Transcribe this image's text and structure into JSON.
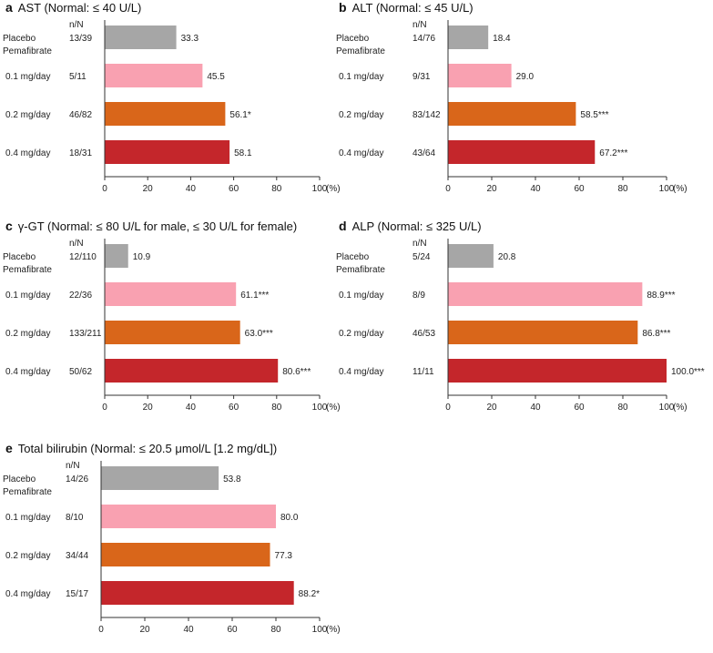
{
  "colors": {
    "placebo": "#a6a6a6",
    "dose_0_1": "#f9a1b1",
    "dose_0_2": "#d9661a",
    "dose_0_4": "#c4262b",
    "axis": "#333333"
  },
  "labels": {
    "nN_header": "n/N",
    "pemafibrate_header": "Pemafibrate"
  },
  "chart_data": [
    {
      "type": "bar",
      "orientation": "horizontal",
      "letter": "a",
      "title": "AST (Normal: ≤ 40 U/L)",
      "categories": [
        "Placebo",
        "0.1 mg/day",
        "0.2 mg/day",
        "0.4 mg/day"
      ],
      "nN": [
        "13/39",
        "5/11",
        "46/82",
        "18/31"
      ],
      "values": [
        33.3,
        45.5,
        56.1,
        58.1
      ],
      "value_labels": [
        "33.3",
        "45.5",
        "56.1*",
        "58.1"
      ],
      "xlim": [
        0,
        100
      ],
      "xticks": [
        0,
        20,
        40,
        60,
        80,
        100
      ],
      "xunit": "(%)"
    },
    {
      "type": "bar",
      "orientation": "horizontal",
      "letter": "b",
      "title": "ALT (Normal: ≤ 45 U/L)",
      "categories": [
        "Placebo",
        "0.1 mg/day",
        "0.2 mg/day",
        "0.4 mg/day"
      ],
      "nN": [
        "14/76",
        "9/31",
        "83/142",
        "43/64"
      ],
      "values": [
        18.4,
        29.0,
        58.5,
        67.2
      ],
      "value_labels": [
        "18.4",
        "29.0",
        "58.5***",
        "67.2***"
      ],
      "xlim": [
        0,
        100
      ],
      "xticks": [
        0,
        20,
        40,
        60,
        80,
        100
      ],
      "xunit": "(%)"
    },
    {
      "type": "bar",
      "orientation": "horizontal",
      "letter": "c",
      "title": "γ-GT (Normal: ≤ 80 U/L for male, ≤ 30 U/L for female)",
      "categories": [
        "Placebo",
        "0.1 mg/day",
        "0.2 mg/day",
        "0.4 mg/day"
      ],
      "nN": [
        "12/110",
        "22/36",
        "133/211",
        "50/62"
      ],
      "values": [
        10.9,
        61.1,
        63.0,
        80.6
      ],
      "value_labels": [
        "10.9",
        "61.1***",
        "63.0***",
        "80.6***"
      ],
      "xlim": [
        0,
        100
      ],
      "xticks": [
        0,
        20,
        40,
        60,
        80,
        100
      ],
      "xunit": "(%)"
    },
    {
      "type": "bar",
      "orientation": "horizontal",
      "letter": "d",
      "title": "ALP (Normal: ≤ 325 U/L)",
      "categories": [
        "Placebo",
        "0.1 mg/day",
        "0.2 mg/day",
        "0.4 mg/day"
      ],
      "nN": [
        "5/24",
        "8/9",
        "46/53",
        "11/11"
      ],
      "values": [
        20.8,
        88.9,
        86.8,
        100.0
      ],
      "value_labels": [
        "20.8",
        "88.9***",
        "86.8***",
        "100.0***"
      ],
      "xlim": [
        0,
        100
      ],
      "xticks": [
        0,
        20,
        40,
        60,
        80,
        100
      ],
      "xunit": "(%)"
    },
    {
      "type": "bar",
      "orientation": "horizontal",
      "letter": "e",
      "title": "Total bilirubin (Normal: ≤ 20.5 μmol/L [1.2 mg/dL])",
      "categories": [
        "Placebo",
        "0.1 mg/day",
        "0.2 mg/day",
        "0.4 mg/day"
      ],
      "nN": [
        "14/26",
        "8/10",
        "34/44",
        "15/17"
      ],
      "values": [
        53.8,
        80.0,
        77.3,
        88.2
      ],
      "value_labels": [
        "53.8",
        "80.0",
        "77.3",
        "88.2*"
      ],
      "xlim": [
        0,
        100
      ],
      "xticks": [
        0,
        20,
        40,
        60,
        80,
        100
      ],
      "xunit": "(%)"
    }
  ]
}
